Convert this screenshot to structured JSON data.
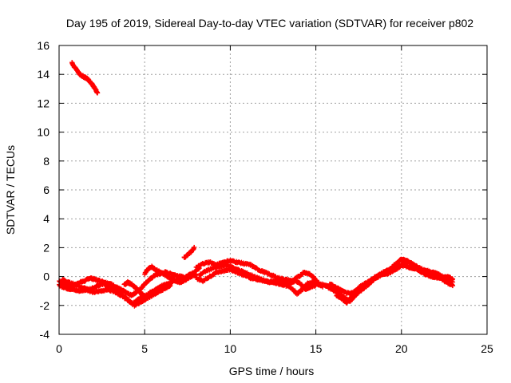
{
  "chart_data": {
    "type": "scatter",
    "title": "Day 195 of 2019, Sidereal Day-to-day VTEC variation (SDTVAR) for receiver p802",
    "xlabel": "GPS time / hours",
    "ylabel": "SDTVAR / TECUs",
    "xlim": [
      0,
      25
    ],
    "ylim": [
      -4,
      16
    ],
    "xticks": [
      "0",
      "5",
      "10",
      "15",
      "20",
      "25"
    ],
    "yticks": [
      "-4",
      "-2",
      "0",
      "2",
      "4",
      "6",
      "8",
      "10",
      "12",
      "14",
      "16"
    ],
    "grid": true,
    "marker": "plus",
    "color": "#ff0000",
    "series": [
      {
        "name": "SDTVAR",
        "segments": [
          [
            [
              0.0,
              -0.3
            ],
            [
              0.3,
              -0.5
            ],
            [
              0.6,
              -0.7
            ],
            [
              0.9,
              -0.6
            ],
            [
              1.2,
              -0.4
            ],
            [
              1.5,
              -0.3
            ],
            [
              1.8,
              -0.1
            ],
            [
              2.1,
              -0.2
            ],
            [
              2.4,
              -0.3
            ],
            [
              2.7,
              -0.4
            ],
            [
              3.0,
              -0.5
            ],
            [
              3.3,
              -0.7
            ],
            [
              3.6,
              -0.9
            ],
            [
              3.9,
              -1.1
            ],
            [
              4.2,
              -1.3
            ],
            [
              4.5,
              -1.1
            ],
            [
              4.8,
              -0.8
            ],
            [
              5.0,
              -0.5
            ],
            [
              5.3,
              -0.2
            ],
            [
              5.6,
              0.1
            ],
            [
              5.9,
              0.2
            ],
            [
              6.2,
              0.3
            ],
            [
              6.5,
              0.2
            ],
            [
              6.8,
              0.1
            ],
            [
              7.1,
              0.0
            ],
            [
              7.4,
              -0.1
            ]
          ],
          [
            [
              0.0,
              -0.6
            ],
            [
              0.4,
              -0.8
            ],
            [
              0.8,
              -0.9
            ],
            [
              1.2,
              -1.0
            ],
            [
              1.6,
              -0.9
            ],
            [
              2.0,
              -1.1
            ],
            [
              2.4,
              -1.0
            ],
            [
              2.8,
              -0.9
            ],
            [
              3.2,
              -1.0
            ],
            [
              3.6,
              -1.3
            ],
            [
              4.0,
              -1.6
            ],
            [
              4.3,
              -1.9
            ],
            [
              4.6,
              -1.6
            ],
            [
              4.9,
              -1.4
            ],
            [
              5.2,
              -1.2
            ],
            [
              5.5,
              -1.0
            ],
            [
              5.8,
              -0.8
            ],
            [
              6.1,
              -0.6
            ],
            [
              6.4,
              -0.5
            ],
            [
              6.7,
              -0.3
            ],
            [
              7.0,
              -0.2
            ],
            [
              7.3,
              -0.1
            ],
            [
              7.6,
              0.1
            ],
            [
              7.9,
              0.3
            ],
            [
              8.2,
              0.6
            ]
          ],
          [
            [
              0.2,
              -0.2
            ],
            [
              0.5,
              -0.4
            ],
            [
              0.8,
              -0.5
            ],
            [
              1.1,
              -0.6
            ],
            [
              1.4,
              -0.8
            ],
            [
              1.7,
              -0.9
            ],
            [
              2.0,
              -0.8
            ],
            [
              2.3,
              -0.6
            ],
            [
              2.6,
              -0.5
            ],
            [
              2.9,
              -0.7
            ],
            [
              3.2,
              -0.9
            ],
            [
              3.5,
              -1.1
            ],
            [
              3.8,
              -1.4
            ],
            [
              4.1,
              -1.7
            ],
            [
              4.4,
              -2.0
            ],
            [
              4.7,
              -1.8
            ],
            [
              5.0,
              -1.6
            ],
            [
              5.3,
              -1.4
            ],
            [
              5.6,
              -1.2
            ],
            [
              5.9,
              -1.0
            ],
            [
              6.2,
              -0.8
            ],
            [
              6.5,
              -0.6
            ]
          ],
          [
            [
              5.0,
              0.2
            ],
            [
              5.2,
              0.5
            ],
            [
              5.4,
              0.7
            ],
            [
              5.6,
              0.5
            ],
            [
              5.9,
              0.3
            ],
            [
              6.2,
              0.1
            ],
            [
              6.5,
              -0.1
            ],
            [
              6.8,
              -0.3
            ],
            [
              7.1,
              -0.4
            ],
            [
              7.4,
              -0.2
            ],
            [
              7.7,
              0.0
            ],
            [
              8.0,
              0.2
            ]
          ],
          [
            [
              3.8,
              -0.6
            ],
            [
              4.0,
              -0.4
            ],
            [
              4.2,
              -0.5
            ],
            [
              4.4,
              -0.7
            ],
            [
              4.6,
              -0.9
            ],
            [
              4.8,
              -1.2
            ],
            [
              5.0,
              -1.3
            ]
          ],
          [
            [
              7.3,
              1.3
            ],
            [
              7.5,
              1.5
            ],
            [
              7.7,
              1.7
            ],
            [
              7.9,
              2.0
            ]
          ],
          [
            [
              0.75,
              14.8
            ],
            [
              0.9,
              14.5
            ],
            [
              1.05,
              14.3
            ],
            [
              1.2,
              14.0
            ],
            [
              1.35,
              13.9
            ],
            [
              1.5,
              13.8
            ],
            [
              1.65,
              13.7
            ],
            [
              1.8,
              13.5
            ],
            [
              1.95,
              13.3
            ],
            [
              2.1,
              13.0
            ],
            [
              2.25,
              12.7
            ]
          ],
          [
            [
              8.0,
              0.6
            ],
            [
              8.4,
              0.9
            ],
            [
              8.8,
              1.0
            ],
            [
              9.2,
              0.8
            ],
            [
              9.6,
              1.0
            ],
            [
              10.0,
              1.1
            ],
            [
              10.4,
              1.0
            ],
            [
              10.8,
              0.9
            ],
            [
              11.2,
              0.8
            ],
            [
              11.6,
              0.5
            ],
            [
              12.0,
              0.3
            ],
            [
              12.4,
              0.1
            ],
            [
              12.8,
              -0.1
            ],
            [
              13.2,
              -0.2
            ],
            [
              13.6,
              -0.3
            ],
            [
              14.0,
              0.0
            ],
            [
              14.3,
              0.3
            ],
            [
              14.6,
              0.2
            ],
            [
              14.9,
              -0.1
            ],
            [
              15.2,
              -0.5
            ],
            [
              15.5,
              -0.6
            ],
            [
              15.8,
              -0.7
            ]
          ],
          [
            [
              8.0,
              -0.1
            ],
            [
              8.4,
              -0.3
            ],
            [
              8.8,
              0.0
            ],
            [
              9.2,
              0.3
            ],
            [
              9.6,
              0.4
            ],
            [
              10.0,
              0.5
            ],
            [
              10.4,
              0.3
            ],
            [
              10.8,
              0.1
            ],
            [
              11.2,
              -0.1
            ],
            [
              11.6,
              -0.2
            ],
            [
              12.0,
              -0.3
            ],
            [
              12.4,
              -0.4
            ],
            [
              12.8,
              -0.5
            ],
            [
              13.2,
              -0.6
            ],
            [
              13.6,
              -0.8
            ],
            [
              13.9,
              -1.2
            ],
            [
              14.2,
              -0.9
            ],
            [
              14.5,
              -0.5
            ],
            [
              14.8,
              -0.4
            ],
            [
              15.1,
              -0.5
            ],
            [
              15.4,
              -0.7
            ]
          ],
          [
            [
              8.2,
              0.1
            ],
            [
              8.6,
              0.4
            ],
            [
              9.0,
              0.6
            ],
            [
              9.4,
              0.7
            ],
            [
              9.8,
              0.8
            ],
            [
              10.2,
              0.6
            ],
            [
              10.6,
              0.4
            ],
            [
              11.0,
              0.2
            ],
            [
              11.4,
              0.0
            ],
            [
              11.8,
              -0.2
            ],
            [
              12.2,
              -0.4
            ],
            [
              12.6,
              -0.3
            ],
            [
              13.0,
              -0.4
            ],
            [
              13.4,
              -0.5
            ],
            [
              13.8,
              -0.3
            ],
            [
              14.1,
              -0.5
            ],
            [
              14.4,
              -0.9
            ],
            [
              14.7,
              -0.7
            ],
            [
              15.0,
              -0.6
            ]
          ],
          [
            [
              15.5,
              -0.6
            ],
            [
              15.8,
              -0.8
            ],
            [
              16.1,
              -1.0
            ],
            [
              16.4,
              -1.2
            ],
            [
              16.7,
              -1.5
            ],
            [
              17.0,
              -1.7
            ],
            [
              17.3,
              -1.3
            ],
            [
              17.6,
              -1.0
            ],
            [
              17.9,
              -0.7
            ],
            [
              18.2,
              -0.4
            ],
            [
              18.5,
              -0.1
            ],
            [
              18.8,
              0.1
            ],
            [
              19.1,
              0.3
            ],
            [
              19.4,
              0.6
            ],
            [
              19.7,
              0.9
            ],
            [
              20.0,
              1.2
            ],
            [
              20.3,
              1.1
            ],
            [
              20.6,
              0.9
            ],
            [
              20.9,
              0.7
            ],
            [
              21.2,
              0.5
            ],
            [
              21.5,
              0.4
            ],
            [
              21.8,
              0.3
            ],
            [
              22.1,
              0.2
            ],
            [
              22.4,
              0.0
            ],
            [
              22.7,
              -0.2
            ],
            [
              23.0,
              -0.4
            ]
          ],
          [
            [
              15.8,
              -0.5
            ],
            [
              16.1,
              -0.7
            ],
            [
              16.4,
              -0.9
            ],
            [
              16.7,
              -1.1
            ],
            [
              17.0,
              -1.2
            ],
            [
              17.3,
              -1.0
            ],
            [
              17.6,
              -0.8
            ],
            [
              17.9,
              -0.5
            ],
            [
              18.2,
              -0.3
            ],
            [
              18.5,
              0.0
            ],
            [
              18.8,
              0.2
            ],
            [
              19.1,
              0.4
            ],
            [
              19.4,
              0.5
            ],
            [
              19.7,
              0.7
            ],
            [
              20.0,
              0.8
            ],
            [
              20.3,
              0.7
            ],
            [
              20.6,
              0.6
            ],
            [
              20.9,
              0.5
            ],
            [
              21.2,
              0.3
            ],
            [
              21.5,
              0.1
            ],
            [
              21.8,
              0.0
            ],
            [
              22.1,
              -0.1
            ],
            [
              22.4,
              -0.1
            ],
            [
              22.7,
              0.0
            ],
            [
              23.0,
              -0.2
            ]
          ],
          [
            [
              16.2,
              -1.3
            ],
            [
              16.5,
              -1.5
            ],
            [
              16.8,
              -1.8
            ],
            [
              17.1,
              -1.4
            ],
            [
              17.4,
              -0.9
            ],
            [
              17.7,
              -0.6
            ],
            [
              18.0,
              -0.4
            ],
            [
              18.3,
              -0.2
            ],
            [
              18.6,
              0.0
            ],
            [
              18.9,
              0.2
            ],
            [
              19.2,
              0.2
            ],
            [
              19.5,
              0.4
            ],
            [
              19.8,
              0.6
            ],
            [
              20.1,
              0.9
            ],
            [
              20.4,
              1.0
            ],
            [
              20.7,
              0.8
            ],
            [
              21.0,
              0.6
            ],
            [
              21.3,
              0.3
            ],
            [
              21.6,
              0.2
            ],
            [
              21.9,
              0.1
            ],
            [
              22.2,
              0.0
            ],
            [
              22.5,
              -0.3
            ],
            [
              22.8,
              -0.5
            ],
            [
              23.0,
              -0.6
            ]
          ]
        ]
      }
    ]
  }
}
